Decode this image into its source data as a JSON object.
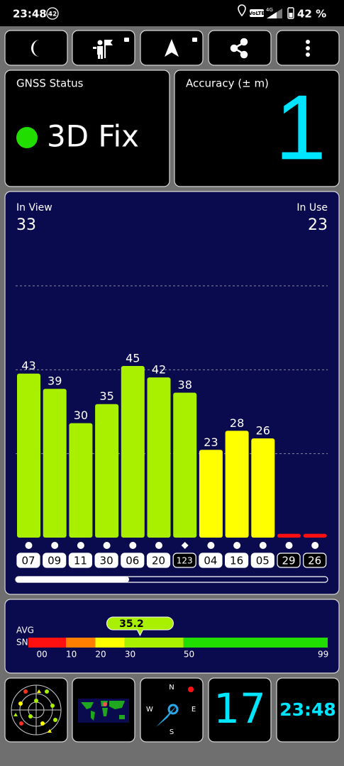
{
  "status_bar": {
    "time": "23:48",
    "badge": "42",
    "volte": "VoLTE",
    "network": "4G",
    "battery": "42 %"
  },
  "gnss_status": {
    "title": "GNSS Status",
    "fix": "3D Fix",
    "indicator_color": "#22dd00"
  },
  "accuracy": {
    "title": "Accuracy (± m)",
    "value": "1"
  },
  "chart_data": {
    "type": "bar",
    "in_view_label": "In View",
    "in_view": 33,
    "in_use_label": "In Use",
    "in_use": 23,
    "categories": [
      "07",
      "09",
      "11",
      "30",
      "06",
      "20",
      "123",
      "04",
      "16",
      "05",
      "29",
      "26"
    ],
    "values": [
      43,
      39,
      30,
      35,
      45,
      42,
      38,
      23,
      28,
      26,
      1,
      1
    ],
    "value_labels": [
      "43",
      "39",
      "30",
      "35",
      "45",
      "42",
      "38",
      "23",
      "28",
      "26",
      null,
      null
    ],
    "colors": [
      "#a8f000",
      "#a8f000",
      "#a8f000",
      "#a8f000",
      "#a8f000",
      "#a8f000",
      "#a8f000",
      "#ffff00",
      "#ffff00",
      "#ffff00",
      "#ff1010",
      "#ff1010"
    ],
    "markers": [
      "dot",
      "dot",
      "dot",
      "dot",
      "dot",
      "dot",
      "diamond",
      "dot",
      "dot",
      "dot",
      "dot",
      "dot"
    ],
    "used": [
      true,
      true,
      true,
      true,
      true,
      true,
      false,
      true,
      true,
      true,
      false,
      false
    ],
    "ylim": [
      0,
      66
    ],
    "grid_lines": [
      22,
      44,
      66
    ],
    "grid": true
  },
  "snr_bar": {
    "avg_label": "AVG",
    "snr_label": "SNR",
    "average": 35.2,
    "xlim": [
      0,
      99
    ],
    "ticks": [
      {
        "value": 0,
        "label": "00"
      },
      10,
      20,
      30,
      50,
      99
    ],
    "segment_colors": [
      "#ff1010",
      "#ff8000",
      "#ffff00",
      "#a8f000",
      "#22dd00"
    ]
  },
  "bottom_tiles": {
    "compass": [
      "N",
      "E",
      "S",
      "W"
    ],
    "satellites": "17",
    "clock": "23:48"
  }
}
